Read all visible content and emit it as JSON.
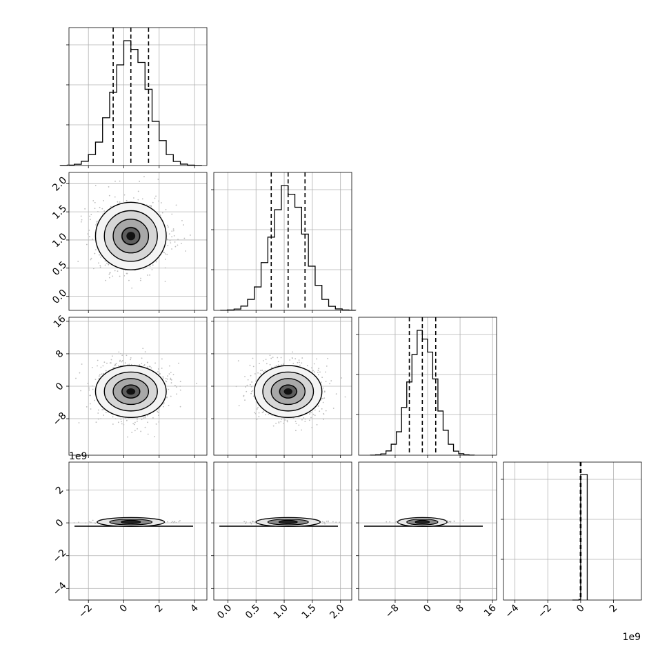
{
  "chart_data": {
    "type": "corner",
    "title": "",
    "grid": true,
    "colors": {
      "line": "#000000",
      "grid": "#b0b0b0",
      "scatter": "#bbbbbb"
    },
    "parameters": [
      {
        "index": 0,
        "range": [
          -3.1,
          4.7
        ],
        "ticks": [
          -2,
          0,
          2,
          4
        ],
        "tick_labels": [
          "−2",
          "0",
          "2",
          "4"
        ],
        "quantiles": [
          -0.6,
          0.4,
          1.4
        ],
        "mean": 0.4,
        "sd": 1.0,
        "hist_shape": "gaussian"
      },
      {
        "index": 1,
        "range": [
          -0.25,
          2.2
        ],
        "ticks": [
          0.0,
          0.5,
          1.0,
          1.5,
          2.0
        ],
        "tick_labels": [
          "0.0",
          "0.5",
          "1.0",
          "1.5",
          "2.0"
        ],
        "quantiles": [
          0.77,
          1.07,
          1.37
        ],
        "mean": 1.07,
        "sd": 0.3,
        "hist_shape": "gaussian"
      },
      {
        "index": 2,
        "range": [
          -17,
          17
        ],
        "ticks": [
          -8,
          0,
          8,
          16
        ],
        "tick_labels": [
          "−8",
          "0",
          "8",
          "16"
        ],
        "quantiles": [
          -4.5,
          -1.3,
          2.0
        ],
        "mean": -1.3,
        "sd": 3.2,
        "hist_shape": "gaussian"
      },
      {
        "index": 3,
        "range": [
          -4.7,
          3.7
        ],
        "ticks": [
          -4,
          -2,
          0,
          2
        ],
        "tick_labels": [
          "−4",
          "−2",
          "0",
          "2"
        ],
        "quantiles": [
          -0.02,
          0.0,
          0.02
        ],
        "mean": 0.0,
        "sd": 0.02,
        "hist_shape": "spike",
        "spike_edges": [
          -0.1,
          0.0,
          0.4
        ],
        "scale_label": "1e9"
      }
    ]
  }
}
